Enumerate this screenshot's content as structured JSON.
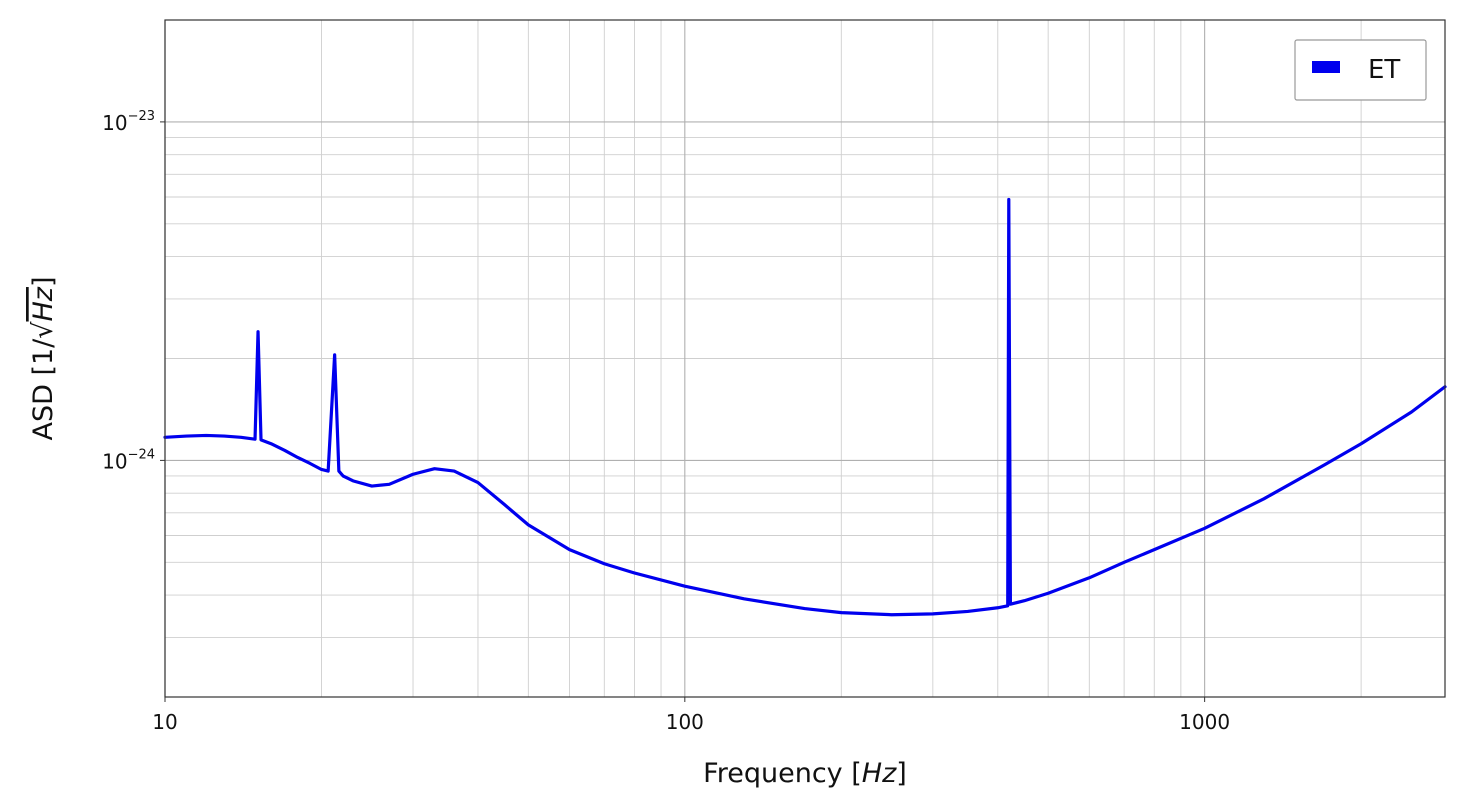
{
  "chart_data": {
    "type": "line",
    "xscale": "log",
    "yscale": "log",
    "xlim": [
      10,
      2900
    ],
    "ylim": [
      2e-25,
      2e-23
    ],
    "grid": true,
    "legend_position": "top-right",
    "xlabel_text": "Frequency [",
    "xlabel_unit": "Hz",
    "xlabel_close": "]",
    "ylabel_text": "ASD [1/√",
    "ylabel_unit": "Hz",
    "ylabel_close": "]",
    "x_ticks": [
      {
        "value": 10,
        "label": "10"
      },
      {
        "value": 100,
        "label": "100"
      },
      {
        "value": 1000,
        "label": "1000"
      }
    ],
    "y_ticks": [
      {
        "value": 1e-24,
        "base": "10",
        "exponent": "−24"
      },
      {
        "value": 1e-23,
        "base": "10",
        "exponent": "−23"
      }
    ],
    "series": [
      {
        "name": "ET",
        "color": "#0000ee",
        "points": [
          [
            10,
            1.17e-24
          ],
          [
            11,
            1.18e-24
          ],
          [
            12,
            1.185e-24
          ],
          [
            13,
            1.18e-24
          ],
          [
            14,
            1.17e-24
          ],
          [
            14.9,
            1.155e-24
          ],
          [
            15.1,
            2.4e-24
          ],
          [
            15.3,
            1.15e-24
          ],
          [
            16,
            1.12e-24
          ],
          [
            17,
            1.07e-24
          ],
          [
            18,
            1.02e-24
          ],
          [
            19,
            9.8e-25
          ],
          [
            20,
            9.4e-25
          ],
          [
            20.6,
            9.3e-25
          ],
          [
            21.2,
            2.05e-24
          ],
          [
            21.6,
            9.3e-25
          ],
          [
            22,
            9e-25
          ],
          [
            23,
            8.7e-25
          ],
          [
            25,
            8.4e-25
          ],
          [
            27,
            8.5e-25
          ],
          [
            30,
            9.1e-25
          ],
          [
            33,
            9.45e-25
          ],
          [
            36,
            9.3e-25
          ],
          [
            40,
            8.6e-25
          ],
          [
            45,
            7.4e-25
          ],
          [
            50,
            6.45e-25
          ],
          [
            60,
            5.45e-25
          ],
          [
            70,
            4.95e-25
          ],
          [
            80,
            4.65e-25
          ],
          [
            100,
            4.25e-25
          ],
          [
            130,
            3.9e-25
          ],
          [
            170,
            3.65e-25
          ],
          [
            200,
            3.55e-25
          ],
          [
            250,
            3.5e-25
          ],
          [
            300,
            3.52e-25
          ],
          [
            350,
            3.58e-25
          ],
          [
            400,
            3.67e-25
          ],
          [
            418,
            3.72e-25
          ],
          [
            420,
            5.9e-24
          ],
          [
            423,
            3.76e-25
          ],
          [
            450,
            3.85e-25
          ],
          [
            500,
            4.05e-25
          ],
          [
            600,
            4.5e-25
          ],
          [
            700,
            5e-25
          ],
          [
            800,
            5.45e-25
          ],
          [
            1000,
            6.3e-25
          ],
          [
            1300,
            7.7e-25
          ],
          [
            1700,
            9.7e-25
          ],
          [
            2000,
            1.12e-24
          ],
          [
            2500,
            1.39e-24
          ],
          [
            2900,
            1.65e-24
          ]
        ]
      }
    ]
  }
}
